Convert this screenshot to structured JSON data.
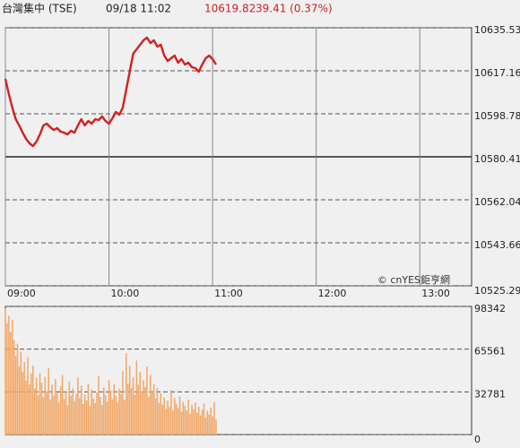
{
  "header": {
    "name": "台灣集中 (TSE)",
    "time": "09/18 11:02",
    "price": "10619.82",
    "change": "39.41 (0.37%)"
  },
  "chart_data": [
    {
      "type": "line",
      "color": "#d42020",
      "watermark": "© cnYES鉅亨網",
      "xlim": [
        0,
        270
      ],
      "xticks": [
        {
          "value": 0,
          "label": "09:00"
        },
        {
          "value": 60,
          "label": "10:00"
        },
        {
          "value": 120,
          "label": "11:00"
        },
        {
          "value": 180,
          "label": "12:00"
        },
        {
          "value": 240,
          "label": "13:00"
        }
      ],
      "ylim": [
        10525.29,
        10635.53
      ],
      "yticks": [
        10525.29,
        10543.66,
        10562.04,
        10580.41,
        10598.78,
        10617.16,
        10635.53
      ],
      "baseline": 10580.41,
      "x": [
        0,
        2,
        4,
        6,
        8,
        10,
        12,
        14,
        16,
        18,
        20,
        22,
        24,
        26,
        28,
        30,
        32,
        34,
        36,
        38,
        40,
        42,
        44,
        46,
        48,
        50,
        52,
        54,
        56,
        58,
        60,
        62,
        64,
        66,
        68,
        70,
        72,
        74,
        76,
        78,
        80,
        82,
        84,
        86,
        88,
        90,
        92,
        94,
        96,
        98,
        100,
        102,
        104,
        106,
        108,
        110,
        112,
        114,
        116,
        118,
        120,
        122
      ],
      "values": [
        10613.71,
        10607.2,
        10601.46,
        10596.48,
        10593.8,
        10590.74,
        10588.06,
        10586.15,
        10585.0,
        10586.91,
        10589.98,
        10593.8,
        10594.57,
        10593.04,
        10591.89,
        10592.66,
        10591.13,
        10590.74,
        10589.98,
        10591.51,
        10590.74,
        10593.8,
        10596.48,
        10593.8,
        10595.72,
        10594.57,
        10596.48,
        10596.1,
        10597.63,
        10595.72,
        10594.57,
        10596.87,
        10599.55,
        10598.4,
        10601.46,
        10609.12,
        10616.77,
        10624.43,
        10626.34,
        10628.26,
        10630.17,
        10631.32,
        10629.02,
        10630.17,
        10627.49,
        10628.26,
        10623.66,
        10621.37,
        10622.51,
        10623.66,
        10620.6,
        10622.13,
        10619.84,
        10620.6,
        10618.69,
        10618.3,
        10616.77,
        10619.84,
        10622.51,
        10623.66,
        10622.13,
        10619.82
      ]
    },
    {
      "type": "bar",
      "color": "#f2a868",
      "xlim": [
        0,
        270
      ],
      "ylim": [
        0,
        98342
      ],
      "yticks": [
        0,
        32781,
        65561,
        98342
      ],
      "x": [
        0,
        1,
        2,
        3,
        4,
        5,
        6,
        7,
        8,
        9,
        10,
        11,
        12,
        13,
        14,
        15,
        16,
        17,
        18,
        19,
        20,
        21,
        22,
        23,
        24,
        25,
        26,
        27,
        28,
        29,
        30,
        31,
        32,
        33,
        34,
        35,
        36,
        37,
        38,
        39,
        40,
        41,
        42,
        43,
        44,
        45,
        46,
        47,
        48,
        49,
        50,
        51,
        52,
        53,
        54,
        55,
        56,
        57,
        58,
        59,
        60,
        61,
        62,
        63,
        64,
        65,
        66,
        67,
        68,
        69,
        70,
        71,
        72,
        73,
        74,
        75,
        76,
        77,
        78,
        79,
        80,
        81,
        82,
        83,
        84,
        85,
        86,
        87,
        88,
        89,
        90,
        91,
        92,
        93,
        94,
        95,
        96,
        97,
        98,
        99,
        100,
        101,
        102,
        103,
        104,
        105,
        106,
        107,
        108,
        109,
        110,
        111,
        112,
        113,
        114,
        115,
        116,
        117,
        118,
        119,
        120,
        121,
        122
      ],
      "values": [
        96900,
        85400,
        91200,
        78600,
        88100,
        72400,
        60300,
        69800,
        52100,
        63500,
        48200,
        55700,
        41300,
        59400,
        38600,
        46900,
        52800,
        35100,
        43700,
        30200,
        47100,
        39800,
        28600,
        44300,
        33500,
        51200,
        26900,
        38400,
        29700,
        42600,
        31800,
        24500,
        36900,
        45800,
        27300,
        33100,
        22600,
        40500,
        29800,
        35400,
        25700,
        31200,
        43900,
        28100,
        37600,
        23400,
        30900,
        26200,
        39100,
        21800,
        34700,
        27600,
        24100,
        32300,
        45200,
        28900,
        22700,
        36100,
        30400,
        25300,
        41700,
        33800,
        27200,
        38500,
        29600,
        24800,
        35300,
        31100,
        48600,
        26700,
        62400,
        39200,
        52700,
        35600,
        44100,
        30700,
        56800,
        38300,
        47900,
        33200,
        41500,
        36400,
        52300,
        29100,
        45700,
        33900,
        38700,
        27500,
        35800,
        24300,
        31600,
        22900,
        28400,
        19800,
        26300,
        21100,
        34200,
        18700,
        27900,
        23600,
        20400,
        29300,
        17600,
        25100,
        21900,
        18300,
        26800,
        15900,
        22700,
        19400,
        24600,
        16800,
        21300,
        14700,
        19100,
        23800,
        12900,
        18200,
        15300,
        20700,
        14100,
        24900,
        11600
      ]
    }
  ]
}
